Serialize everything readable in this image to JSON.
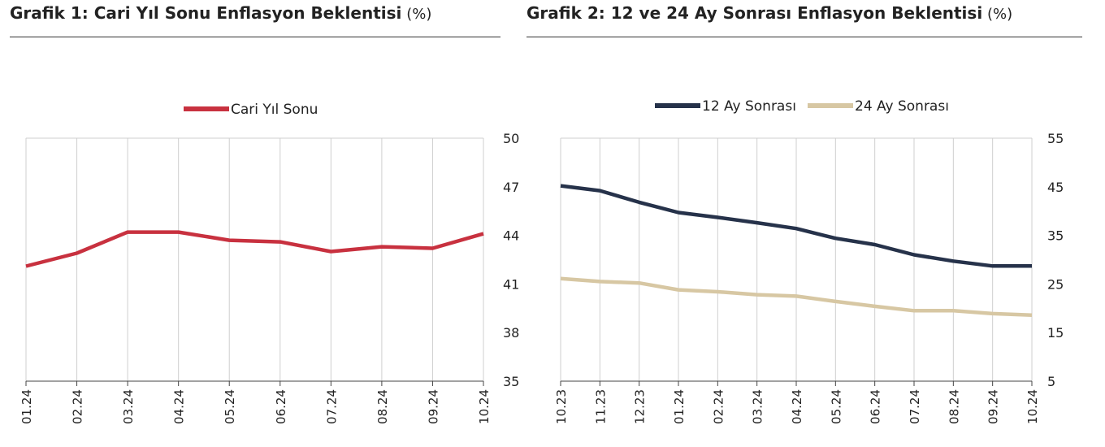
{
  "panels": [
    {
      "title": "Grafik 1: Cari Yıl Sonu Enflasyon Beklentisi",
      "unit": "(%)"
    },
    {
      "title": "Grafik 2: 12 ve 24 Ay Sonrası Enflasyon Beklentisi",
      "unit": "(%)"
    }
  ],
  "chart_data": [
    {
      "type": "line",
      "title": "Grafik 1: Cari Yıl Sonu Enflasyon Beklentisi",
      "categories": [
        "01.24",
        "02.24",
        "03.24",
        "04.24",
        "05.24",
        "06.24",
        "07.24",
        "08.24",
        "09.24",
        "10.24"
      ],
      "series": [
        {
          "name": "Cari Yıl Sonu",
          "color": "#c8313f",
          "values": [
            42.1,
            42.9,
            44.2,
            44.2,
            43.7,
            43.6,
            43.0,
            43.3,
            43.2,
            44.1
          ]
        }
      ],
      "ylim": [
        35,
        50
      ],
      "yticks": [
        35,
        38,
        41,
        44,
        47,
        50
      ],
      "y_axis_side": "right",
      "grid": "vertical",
      "legend": "top-center"
    },
    {
      "type": "line",
      "title": "Grafik 2: 12 ve 24 Ay Sonrası Enflasyon Beklentisi",
      "categories": [
        "10.23",
        "11.23",
        "12.23",
        "01.24",
        "02.24",
        "03.24",
        "04.24",
        "05.24",
        "06.24",
        "07.24",
        "08.24",
        "09.24",
        "10.24"
      ],
      "series": [
        {
          "name": "12 Ay Sonrası",
          "color": "#26324a",
          "values": [
            45.2,
            44.2,
            41.8,
            39.7,
            38.7,
            37.6,
            36.4,
            34.4,
            33.1,
            31.0,
            29.7,
            28.7,
            28.7
          ]
        },
        {
          "name": "24 Ay Sonrası",
          "color": "#d7c7a3",
          "values": [
            26.1,
            25.5,
            25.2,
            23.8,
            23.4,
            22.8,
            22.5,
            21.4,
            20.4,
            19.5,
            19.5,
            18.9,
            18.6
          ]
        }
      ],
      "ylim": [
        5,
        55
      ],
      "yticks": [
        5,
        15,
        25,
        35,
        45,
        55
      ],
      "y_axis_side": "right",
      "grid": "vertical",
      "legend": "top-center"
    }
  ]
}
